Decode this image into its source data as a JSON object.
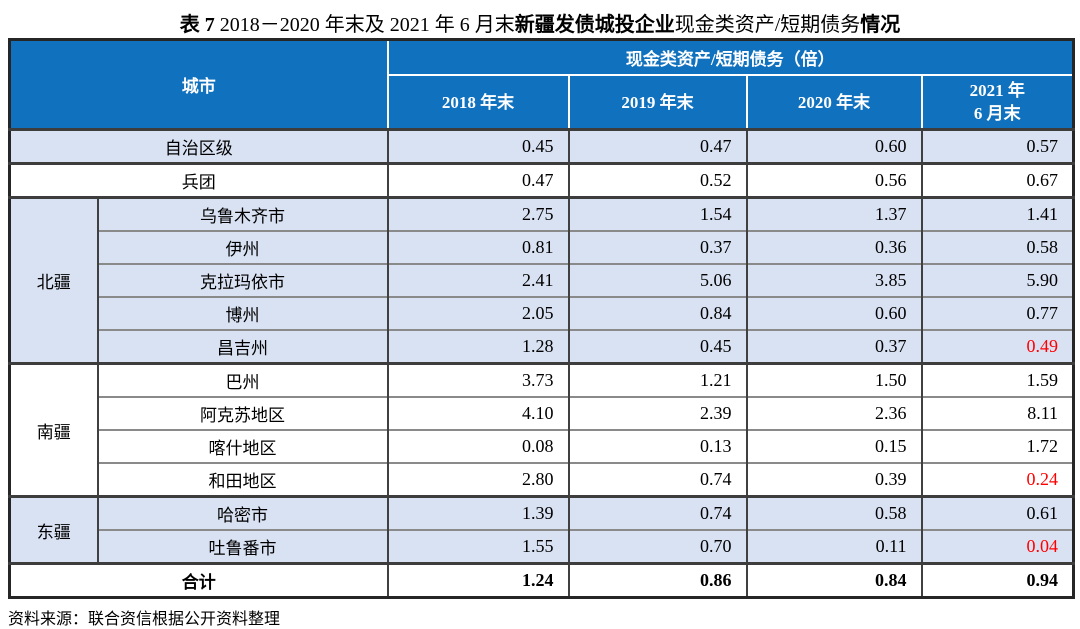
{
  "title": {
    "segments": [
      {
        "text": "表 7  ",
        "bold": true
      },
      {
        "text": "2018－2020 年末及 2021 年 6 月末",
        "bold": false
      },
      {
        "text": "新疆发债城投企业",
        "bold": true
      },
      {
        "text": "现金类资产/短期债务",
        "bold": false
      },
      {
        "text": "情况",
        "bold": true
      }
    ]
  },
  "table": {
    "header": {
      "city_label": "城市",
      "metric_label": "现金类资产/短期债务（倍）",
      "columns": [
        {
          "lines": [
            "2018 年末"
          ]
        },
        {
          "lines": [
            "2019 年末"
          ]
        },
        {
          "lines": [
            "2020 年末"
          ]
        },
        {
          "lines": [
            "2021 年",
            "6 月末"
          ]
        }
      ]
    },
    "sections": [
      {
        "group": null,
        "shaded": true,
        "bold": false,
        "rows": [
          {
            "city": "自治区级",
            "values": [
              "0.45",
              "0.47",
              "0.60",
              "0.57"
            ],
            "red": [
              false,
              false,
              false,
              false
            ]
          }
        ]
      },
      {
        "group": null,
        "shaded": false,
        "bold": false,
        "rows": [
          {
            "city": "兵团",
            "values": [
              "0.47",
              "0.52",
              "0.56",
              "0.67"
            ],
            "red": [
              false,
              false,
              false,
              false
            ]
          }
        ]
      },
      {
        "group": "北疆",
        "shaded": true,
        "bold": false,
        "rows": [
          {
            "city": "乌鲁木齐市",
            "values": [
              "2.75",
              "1.54",
              "1.37",
              "1.41"
            ],
            "red": [
              false,
              false,
              false,
              false
            ]
          },
          {
            "city": "伊州",
            "values": [
              "0.81",
              "0.37",
              "0.36",
              "0.58"
            ],
            "red": [
              false,
              false,
              false,
              false
            ]
          },
          {
            "city": "克拉玛依市",
            "values": [
              "2.41",
              "5.06",
              "3.85",
              "5.90"
            ],
            "red": [
              false,
              false,
              false,
              false
            ]
          },
          {
            "city": "博州",
            "values": [
              "2.05",
              "0.84",
              "0.60",
              "0.77"
            ],
            "red": [
              false,
              false,
              false,
              false
            ]
          },
          {
            "city": "昌吉州",
            "values": [
              "1.28",
              "0.45",
              "0.37",
              "0.49"
            ],
            "red": [
              false,
              false,
              false,
              true
            ]
          }
        ]
      },
      {
        "group": "南疆",
        "shaded": false,
        "bold": false,
        "rows": [
          {
            "city": "巴州",
            "values": [
              "3.73",
              "1.21",
              "1.50",
              "1.59"
            ],
            "red": [
              false,
              false,
              false,
              false
            ]
          },
          {
            "city": "阿克苏地区",
            "values": [
              "4.10",
              "2.39",
              "2.36",
              "8.11"
            ],
            "red": [
              false,
              false,
              false,
              false
            ]
          },
          {
            "city": "喀什地区",
            "values": [
              "0.08",
              "0.13",
              "0.15",
              "1.72"
            ],
            "red": [
              false,
              false,
              false,
              false
            ]
          },
          {
            "city": "和田地区",
            "values": [
              "2.80",
              "0.74",
              "0.39",
              "0.24"
            ],
            "red": [
              false,
              false,
              false,
              true
            ]
          }
        ]
      },
      {
        "group": "东疆",
        "shaded": true,
        "bold": false,
        "rows": [
          {
            "city": "哈密市",
            "values": [
              "1.39",
              "0.74",
              "0.58",
              "0.61"
            ],
            "red": [
              false,
              false,
              false,
              false
            ]
          },
          {
            "city": "吐鲁番市",
            "values": [
              "1.55",
              "0.70",
              "0.11",
              "0.04"
            ],
            "red": [
              false,
              false,
              false,
              true
            ]
          }
        ]
      },
      {
        "group": null,
        "shaded": false,
        "bold": true,
        "rows": [
          {
            "city": "合计",
            "values": [
              "1.24",
              "0.86",
              "0.84",
              "0.94"
            ],
            "red": [
              false,
              false,
              false,
              false
            ]
          }
        ]
      }
    ]
  },
  "source": "资料来源：联合资信根据公开资料整理",
  "colors": {
    "header_bg": "#1071BE",
    "shaded_row": "#D9E2F3",
    "alert_red": "#FF0000"
  }
}
